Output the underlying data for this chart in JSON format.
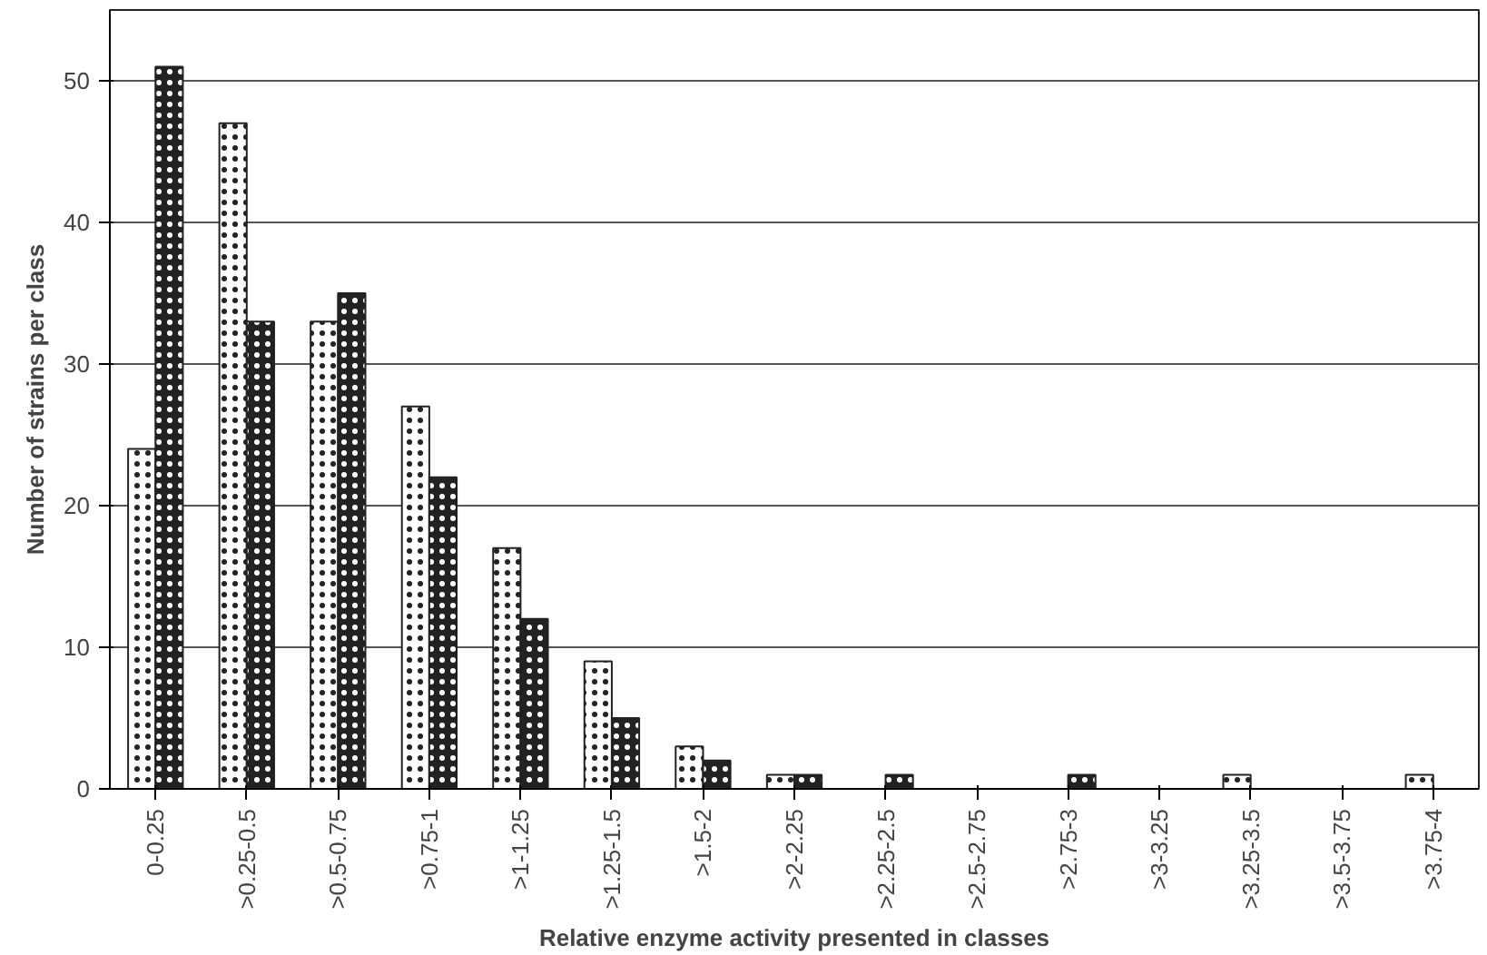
{
  "chart_data": {
    "type": "bar",
    "xlabel": "Relative enzyme activity presented in classes",
    "ylabel": "Number of strains per class",
    "categories": [
      "0-0.25",
      ">0.25-0.5",
      ">0.5-0.75",
      ">0.75-1",
      ">1-1.25",
      ">1.25-1.5",
      ">1.5-2",
      ">2-2.25",
      ">2.25-2.5",
      ">2.5-2.75",
      ">2.75-3",
      ">3-3.25",
      ">3.25-3.5",
      ">3.5-3.75",
      ">3.75-4"
    ],
    "series": [
      {
        "color": "#ffffff",
        "values": [
          24,
          47,
          33,
          27,
          17,
          9,
          3,
          1,
          0,
          0,
          0,
          0,
          1,
          0,
          1
        ]
      },
      {
        "color": "#222222",
        "values": [
          51,
          33,
          35,
          22,
          12,
          5,
          2,
          1,
          1,
          0,
          1,
          0,
          0,
          0,
          0
        ]
      }
    ],
    "ylim": [
      0,
      55
    ],
    "yticks": [
      0,
      10,
      20,
      30,
      40,
      50
    ],
    "grid": "y"
  }
}
